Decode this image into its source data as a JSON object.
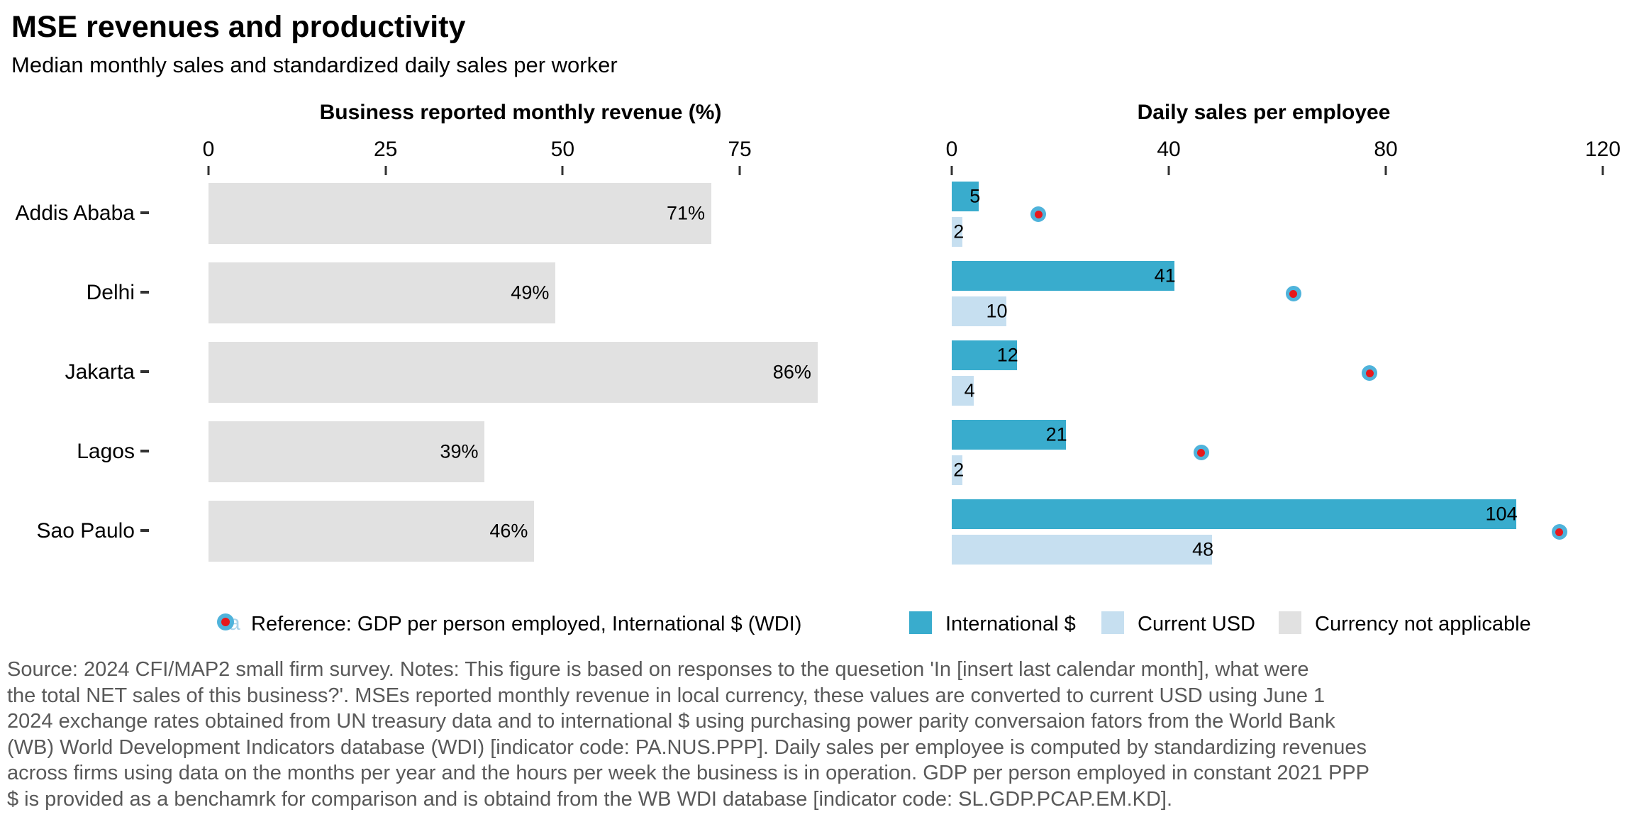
{
  "header": {
    "title": "MSE revenues and productivity",
    "subtitle": "Median monthly sales and standardized daily sales per worker"
  },
  "chart_data": {
    "type": "bar",
    "orientation": "horizontal",
    "categories": [
      "Addis Ababa",
      "Delhi",
      "Jakarta",
      "Lagos",
      "Sao Paulo"
    ],
    "left_panel": {
      "title": "Business reported monthly revenue (%)",
      "axis_ticks": [
        "0",
        "25",
        "50",
        "75"
      ],
      "axis_tick_values": [
        0,
        25,
        50,
        75
      ],
      "xlim": [
        0,
        87
      ],
      "series": [
        {
          "name": "Currency not applicable",
          "values": [
            71,
            49,
            86,
            39,
            46
          ],
          "labels": [
            "71%",
            "49%",
            "86%",
            "39%",
            "46%"
          ],
          "color": "#E1E1E1"
        }
      ],
      "grid": false
    },
    "right_panel": {
      "title": "Daily sales per employee",
      "axis_ticks": [
        "0",
        "40",
        "80",
        "120"
      ],
      "axis_tick_values": [
        0,
        40,
        80,
        120
      ],
      "xlim": [
        0,
        120
      ],
      "series": [
        {
          "name": "International $",
          "values": [
            5,
            41,
            12,
            21,
            104
          ],
          "labels": [
            "5",
            "41",
            "12",
            "21",
            "104"
          ],
          "color": "#39ACCD"
        },
        {
          "name": "Current USD",
          "values": [
            2,
            10,
            4,
            2,
            48
          ],
          "labels": [
            "2",
            "10",
            "4",
            "2",
            "48"
          ],
          "color": "#C6DFF0"
        },
        {
          "name": "Reference: GDP per person employed, International $ (WDI)",
          "type": "point",
          "values": [
            16,
            63,
            77,
            46,
            112
          ],
          "marker": {
            "outer_color": "#4FB3DB",
            "inner_color": "#E8191C"
          }
        }
      ],
      "grid": false
    }
  },
  "legend": {
    "reference_label": "Reference: GDP per person employed, International $ (WDI)",
    "items": [
      {
        "label": "International $",
        "color": "#39ACCD"
      },
      {
        "label": "Current USD",
        "color": "#C6DFF0"
      },
      {
        "label": "Currency not applicable",
        "color": "#E1E1E1"
      }
    ]
  },
  "colors": {
    "international_dollar": "#39ACCD",
    "current_usd": "#C6DFF0",
    "currency_not_applicable": "#E1E1E1",
    "reference_outer": "#4FB3DB",
    "reference_inner": "#E8191C",
    "footnote_text": "#595959"
  },
  "footnote_lines": [
    "Source: 2024 CFI/MAP2 small firm survey. Notes: This figure is based on responses to the quesetion 'In [insert last calendar month], what were",
    "the total NET sales of this business?'. MSEs reported monthly revenue in local currency, these values are converted to current USD using June 1",
    "2024 exchange rates obtained from UN treasury data and to international $ using purchasing power parity conversaion fators from the World Bank",
    "(WB) World Development Indicators database (WDI) [indicator code: PA.NUS.PPP]. Daily sales per employee is computed by standardizing revenues",
    "across firms using data on the months per year and the hours per week the business is in operation. GDP per person employed in constant 2021 PPP",
    "$ is provided as a benchamrk for comparison and is obtaind from the WB WDI database [indicator code: SL.GDP.PCAP.EM.KD]."
  ]
}
